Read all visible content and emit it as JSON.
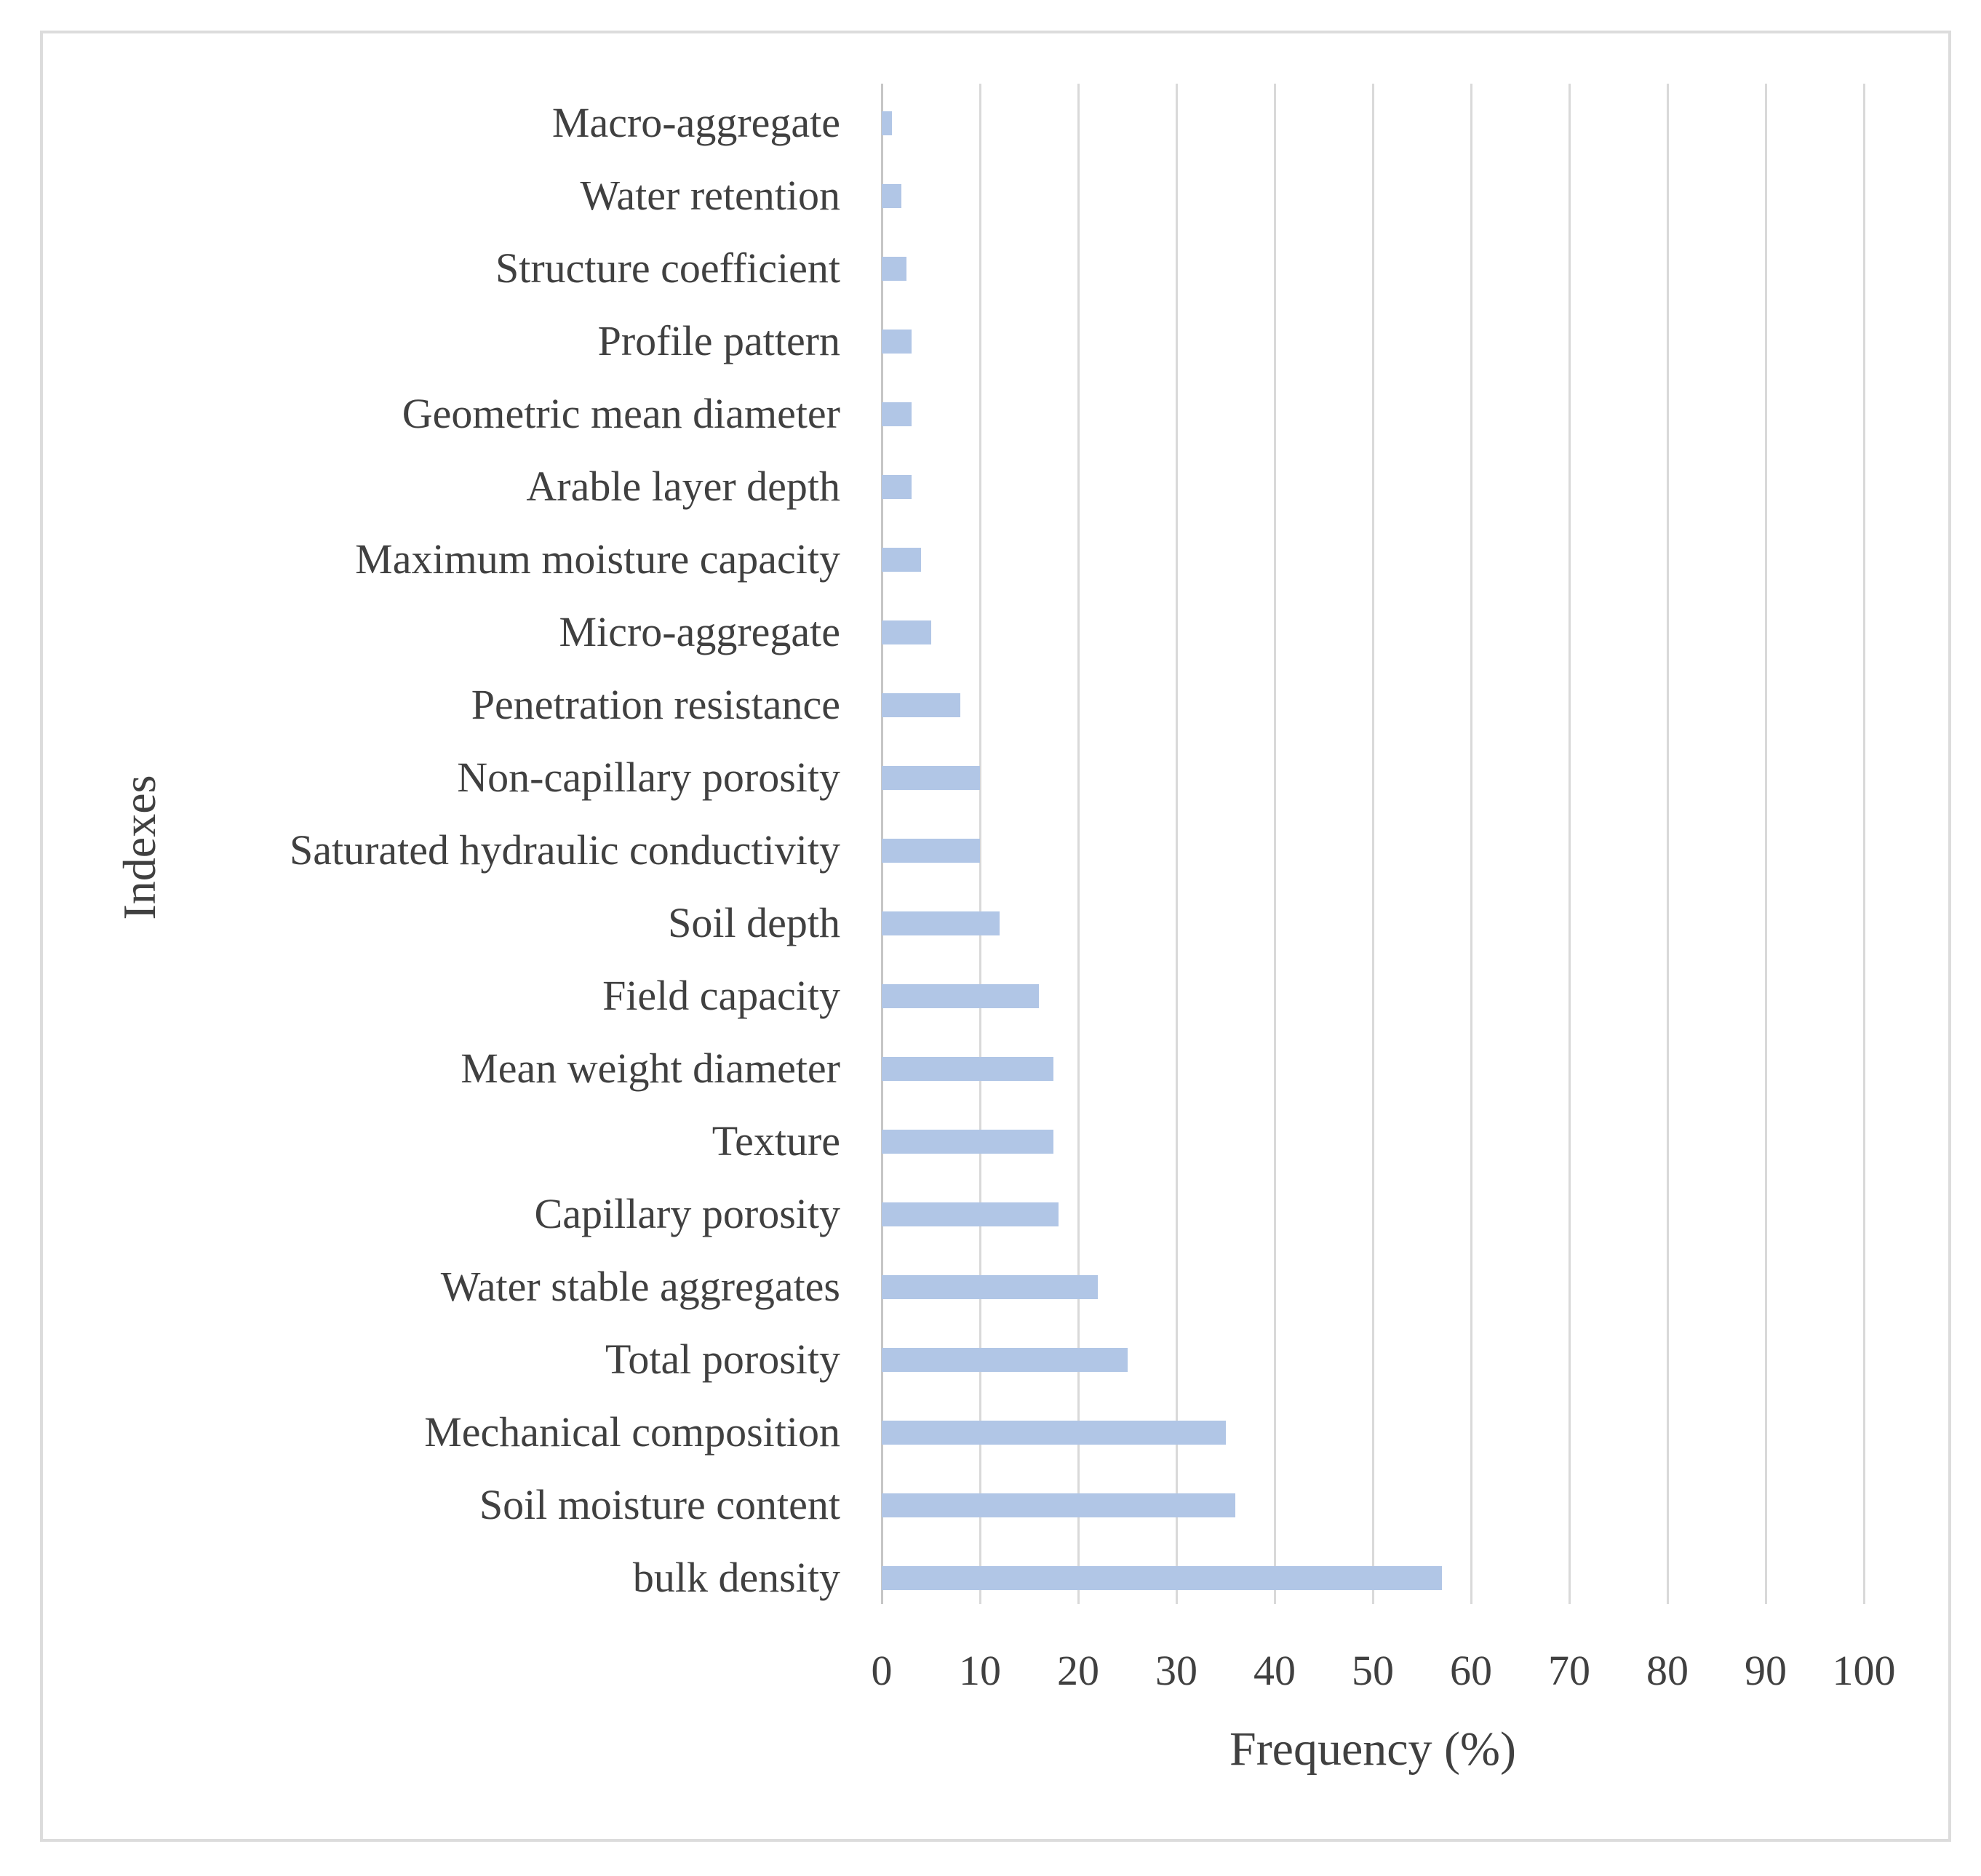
{
  "figure": {
    "border_color": "#dcdcdc",
    "background": "#ffffff"
  },
  "chart_data": {
    "type": "bar",
    "orientation": "horizontal",
    "title": "",
    "xlabel": "Frequency (%)",
    "ylabel": "Indexes",
    "xlim": [
      0,
      100
    ],
    "x_ticks": [
      "0",
      "10",
      "20",
      "30",
      "40",
      "50",
      "60",
      "70",
      "80",
      "90",
      "100"
    ],
    "grid": "vertical",
    "legend": "none",
    "bar_color": "#b1c6e6",
    "gridline_color": "#d9d9d9",
    "text_color": "#404040",
    "categories": [
      "Macro-aggregate",
      "Water retention",
      "Structure coefficient",
      "Profile pattern",
      "Geometric mean diameter",
      "Arable layer depth",
      "Maximum moisture capacity",
      "Micro-aggregate",
      "Penetration resistance",
      "Non-capillary porosity",
      "Saturated hydraulic conductivity",
      "Soil depth",
      "Field capacity",
      "Mean weight diameter",
      "Texture",
      "Capillary porosity",
      "Water stable aggregates",
      "Total porosity",
      "Mechanical composition",
      "Soil moisture content",
      "bulk density"
    ],
    "values": [
      1,
      2,
      2.5,
      3,
      3,
      3,
      4,
      5,
      8,
      10,
      10,
      12,
      16,
      17.5,
      17.5,
      18,
      22,
      25,
      35,
      36,
      57
    ]
  }
}
